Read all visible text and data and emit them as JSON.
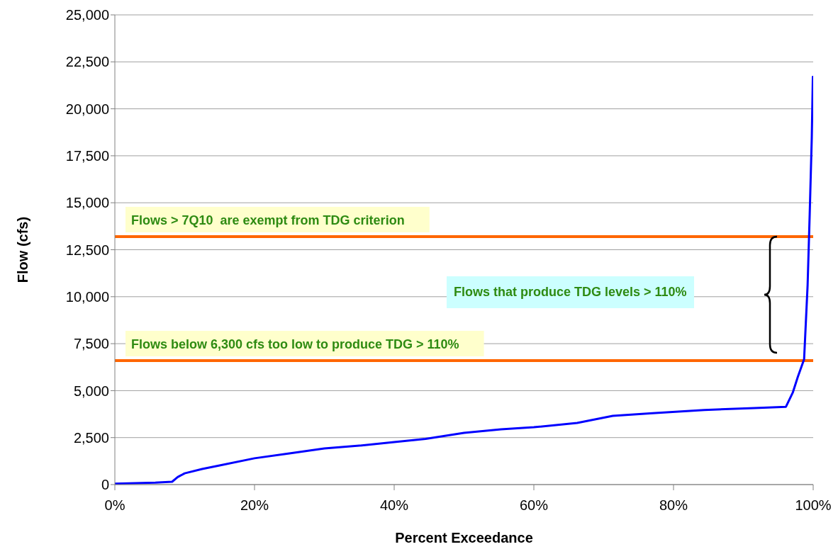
{
  "chart_data": {
    "type": "line",
    "xlabel": "Percent Exceedance",
    "ylabel": "Flow (cfs)",
    "x": [
      0,
      5.8,
      8.2,
      9,
      10,
      12.5,
      15,
      20,
      25,
      30,
      35,
      40,
      44.5,
      50,
      55.3,
      60,
      66.2,
      71.3,
      77,
      84.4,
      91.6,
      96.1,
      97.1,
      97.8,
      98.7,
      99.2,
      99.5,
      99.8,
      99.95,
      100
    ],
    "series": [
      {
        "color": "#0000ff",
        "values": [
          50,
          100,
          150,
          400,
          600,
          830,
          1020,
          1400,
          1660,
          1920,
          2070,
          2260,
          2430,
          2750,
          2940,
          3050,
          3280,
          3660,
          3800,
          3970,
          4070,
          4140,
          4920,
          5730,
          6670,
          10600,
          14380,
          18480,
          21700,
          21700
        ]
      }
    ],
    "xlim": [
      0,
      100
    ],
    "xticks": [
      {
        "value": 0,
        "label": "0%"
      },
      {
        "value": 20,
        "label": "20%"
      },
      {
        "value": 40,
        "label": "40%"
      },
      {
        "value": 60,
        "label": "60%"
      },
      {
        "value": 80,
        "label": "80%"
      },
      {
        "value": 100,
        "label": "100%"
      }
    ],
    "ylim": [
      0,
      25000
    ],
    "yticks": [
      0,
      {
        "value": 2500,
        "label": "2,500"
      },
      {
        "value": 5000,
        "label": "5,000"
      },
      {
        "value": 7500,
        "label": "7,500"
      },
      {
        "value": 10000,
        "label": "10,000"
      },
      {
        "value": 12500,
        "label": "12,500"
      },
      {
        "value": 15000,
        "label": "15,000"
      },
      {
        "value": 17500,
        "label": "17,500"
      },
      {
        "value": 20000,
        "label": "20,000"
      },
      {
        "value": 22500,
        "label": "22,500"
      },
      {
        "value": 25000,
        "label": "25,000"
      }
    ],
    "grid": "y",
    "marker": "none",
    "line_style": "solid",
    "ref_lines": [
      {
        "axis": "y",
        "value": 13200,
        "label": "Flows > 7Q10  are exempt from TDG criterion",
        "color": "#ff6600"
      },
      {
        "axis": "y",
        "value": 6600,
        "label": "Flows below 6,300 cfs too low to produce TDG > 110%",
        "color": "#ff6600"
      }
    ],
    "annotations": [
      "Flows that produce TDG levels > 110%"
    ]
  }
}
